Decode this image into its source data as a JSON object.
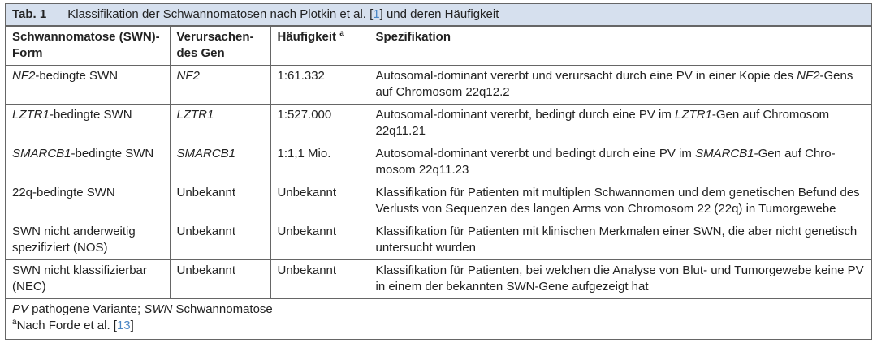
{
  "table": {
    "label": "Tab. 1",
    "title": [
      {
        "text": "Klassifikation der Schwannomatosen nach Plotkin et al. ["
      },
      {
        "text": "1",
        "ref": true
      },
      {
        "text": "] und deren Häufigkeit"
      }
    ],
    "header": [
      [
        {
          "text": "Schwannomatose (SWN)-Form"
        }
      ],
      [
        {
          "text": "Verursachen­des Gen"
        }
      ],
      [
        {
          "text": "Häufigkeit "
        },
        {
          "text": "a",
          "sup": true
        }
      ],
      [
        {
          "text": "Spezifikation"
        }
      ]
    ],
    "rows": [
      [
        [
          {
            "text": "NF2",
            "italic": true
          },
          {
            "text": "-bedingte SWN"
          }
        ],
        [
          {
            "text": "NF2",
            "italic": true
          }
        ],
        [
          {
            "text": "1:61.332"
          }
        ],
        [
          {
            "text": "Autosomal-dominant vererbt und verursacht durch eine PV in einer Kopie des "
          },
          {
            "text": "NF2",
            "italic": true
          },
          {
            "text": "-Gens auf Chromosom 22q12.2"
          }
        ]
      ],
      [
        [
          {
            "text": "LZTR1",
            "italic": true
          },
          {
            "text": "-bedingte SWN"
          }
        ],
        [
          {
            "text": "LZTR1",
            "italic": true
          }
        ],
        [
          {
            "text": "1:527.000"
          }
        ],
        [
          {
            "text": "Autosomal-dominant vererbt, bedingt durch eine PV im "
          },
          {
            "text": "LZTR1",
            "italic": true
          },
          {
            "text": "-Gen auf Chromosom 22q11.21"
          }
        ]
      ],
      [
        [
          {
            "text": "SMARCB1",
            "italic": true
          },
          {
            "text": "-bedingte SWN"
          }
        ],
        [
          {
            "text": "SMARCB1",
            "italic": true
          }
        ],
        [
          {
            "text": "1:1,1 Mio."
          }
        ],
        [
          {
            "text": "Autosomal-dominant vererbt und bedingt durch eine PV im "
          },
          {
            "text": "SMARCB1",
            "italic": true
          },
          {
            "text": "-Gen auf Chro­mosom 22q11.23"
          }
        ]
      ],
      [
        [
          {
            "text": "22q-bedingte SWN"
          }
        ],
        [
          {
            "text": "Unbekannt"
          }
        ],
        [
          {
            "text": "Unbekannt"
          }
        ],
        [
          {
            "text": "Klassifikation für Patienten mit multiplen Schwannomen und dem genetischen Be­fund des Verlusts von Sequenzen des langen Arms von Chromosom 22 (22q) in Tu­morgewebe"
          }
        ]
      ],
      [
        [
          {
            "text": "SWN nicht anderweitig spezifiziert (NOS)"
          }
        ],
        [
          {
            "text": "Unbekannt"
          }
        ],
        [
          {
            "text": "Unbekannt"
          }
        ],
        [
          {
            "text": "Klassifikation für Patienten mit klinischen Merkmalen einer SWN, die aber nicht gene­tisch untersucht wurden"
          }
        ]
      ],
      [
        [
          {
            "text": "SWN nicht klassifizierbar (NEC)"
          }
        ],
        [
          {
            "text": "Unbekannt"
          }
        ],
        [
          {
            "text": "Unbekannt"
          }
        ],
        [
          {
            "text": "Klassifikation für Patienten, bei welchen die Analyse von Blut- und Tumorgewebe keine PV in einem der bekannten SWN-Gene aufgezeigt hat"
          }
        ]
      ]
    ],
    "footnotes": [
      [
        {
          "text": "PV",
          "italic": true
        },
        {
          "text": " pathogene Variante; "
        },
        {
          "text": "SWN",
          "italic": true
        },
        {
          "text": " Schwannomatose"
        }
      ],
      [
        {
          "text": "a",
          "sup": true
        },
        {
          "text": "Nach Forde et al. ["
        },
        {
          "text": "13",
          "ref": true
        },
        {
          "text": "]"
        }
      ]
    ]
  }
}
